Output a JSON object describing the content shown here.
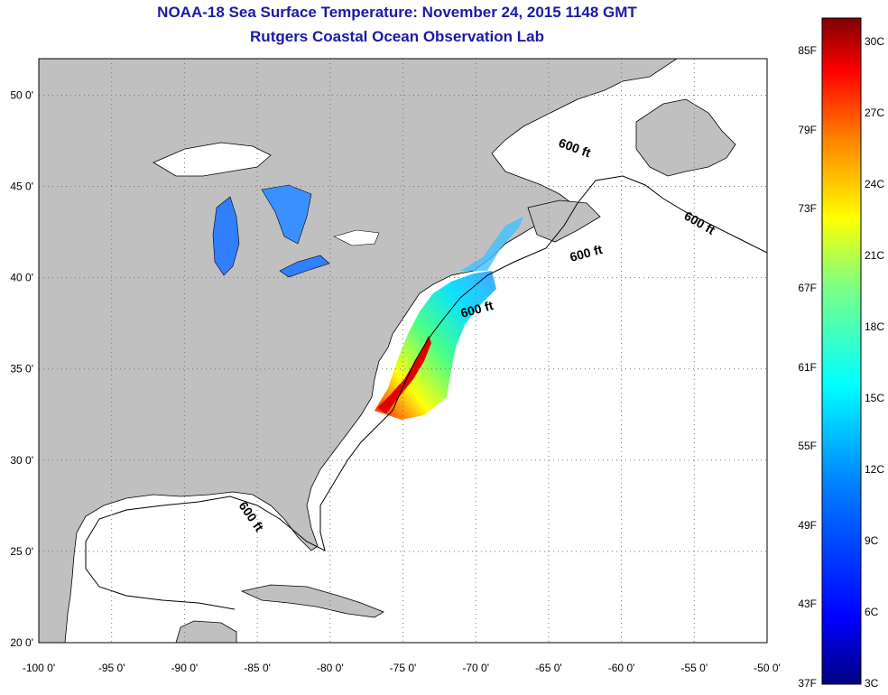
{
  "title": "NOAA-18 Sea Surface Temperature:  November 24, 2015 1148 GMT",
  "subtitle": "Rutgers Coastal Ocean Observation Lab",
  "map": {
    "lon_range": [
      -100,
      -50
    ],
    "lat_range": [
      20,
      52
    ],
    "x_ticks": [
      {
        "lon": -100,
        "label": "-100 0'"
      },
      {
        "lon": -95,
        "label": "-95 0'"
      },
      {
        "lon": -90,
        "label": "-90 0'"
      },
      {
        "lon": -85,
        "label": "-85 0'"
      },
      {
        "lon": -80,
        "label": "-80 0'"
      },
      {
        "lon": -75,
        "label": "-75 0'"
      },
      {
        "lon": -70,
        "label": "-70 0'"
      },
      {
        "lon": -65,
        "label": "-65 0'"
      },
      {
        "lon": -60,
        "label": "-60 0'"
      },
      {
        "lon": -55,
        "label": "-55 0'"
      },
      {
        "lon": -50,
        "label": "-50 0'"
      }
    ],
    "y_ticks": [
      {
        "lat": 50,
        "label": "50 0'"
      },
      {
        "lat": 45,
        "label": "45 0'"
      },
      {
        "lat": 40,
        "label": "40 0'"
      },
      {
        "lat": 35,
        "label": "35 0'"
      },
      {
        "lat": 30,
        "label": "30 0'"
      },
      {
        "lat": 25,
        "label": "25 0'"
      },
      {
        "lat": 20,
        "label": "20 0'"
      }
    ],
    "contour_label": "600 ft",
    "land_color": "#c0c0c0",
    "ocean_color": "#ffffff"
  },
  "colorbar": {
    "fahrenheit_labels": [
      "85F",
      "79F",
      "73F",
      "67F",
      "61F",
      "55F",
      "49F",
      "43F",
      "37F"
    ],
    "celsius_labels": [
      "30C",
      "27C",
      "24C",
      "21C",
      "18C",
      "15C",
      "12C",
      "9C",
      "6C",
      "3C"
    ],
    "colors": [
      "#000080",
      "#0000ff",
      "#0080ff",
      "#00ffff",
      "#80ff80",
      "#ffff00",
      "#ff8000",
      "#ff0000",
      "#800000"
    ]
  }
}
